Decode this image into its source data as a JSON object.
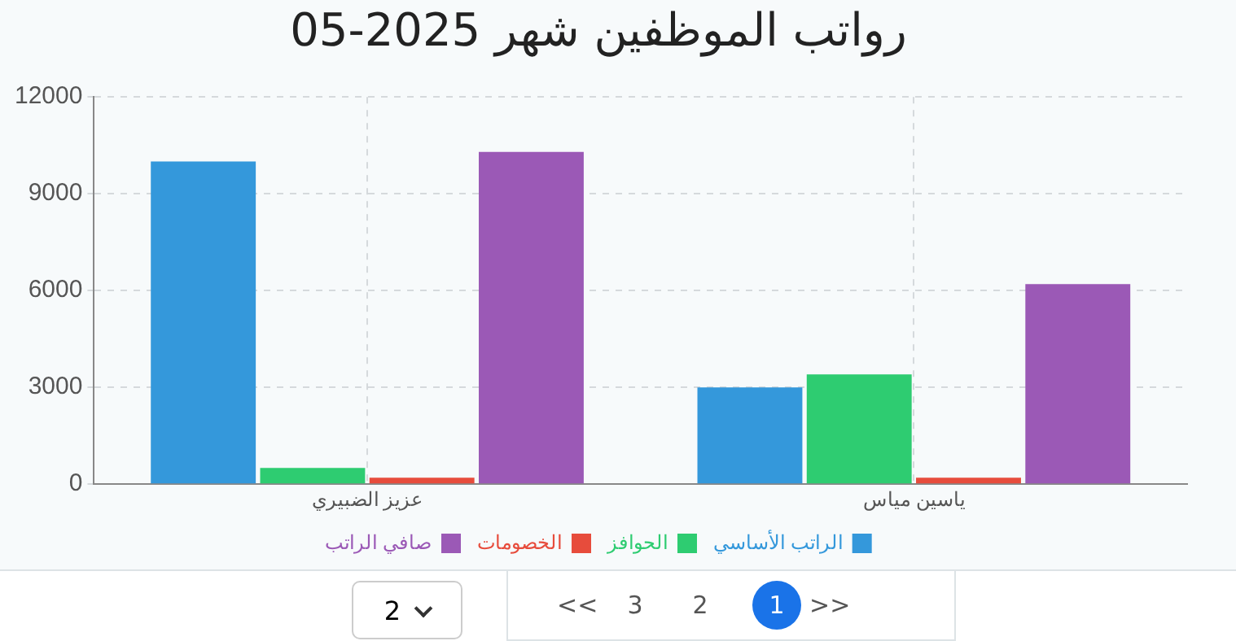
{
  "chart_data": {
    "type": "bar",
    "title": "رواتب الموظفين شهر 2025-05",
    "categories": [
      "عزيز الضبيري",
      "ياسين مياس"
    ],
    "series": [
      {
        "name": "الراتب الأساسي",
        "color": "#3498db",
        "values": [
          10000,
          3000
        ]
      },
      {
        "name": "الحوافز",
        "color": "#2ecc71",
        "values": [
          500,
          3400
        ]
      },
      {
        "name": "الخصومات",
        "color": "#e74c3c",
        "values": [
          200,
          200
        ]
      },
      {
        "name": "صافي الراتب",
        "color": "#9b59b6",
        "values": [
          10300,
          6200
        ]
      }
    ],
    "ylim": [
      0,
      12000
    ],
    "yticks": [
      0,
      3000,
      6000,
      9000,
      12000
    ],
    "grid": true,
    "legend": "bottom",
    "annotations": [
      "2",
      "<<",
      "3",
      "2",
      "1",
      ">>"
    ]
  }
}
